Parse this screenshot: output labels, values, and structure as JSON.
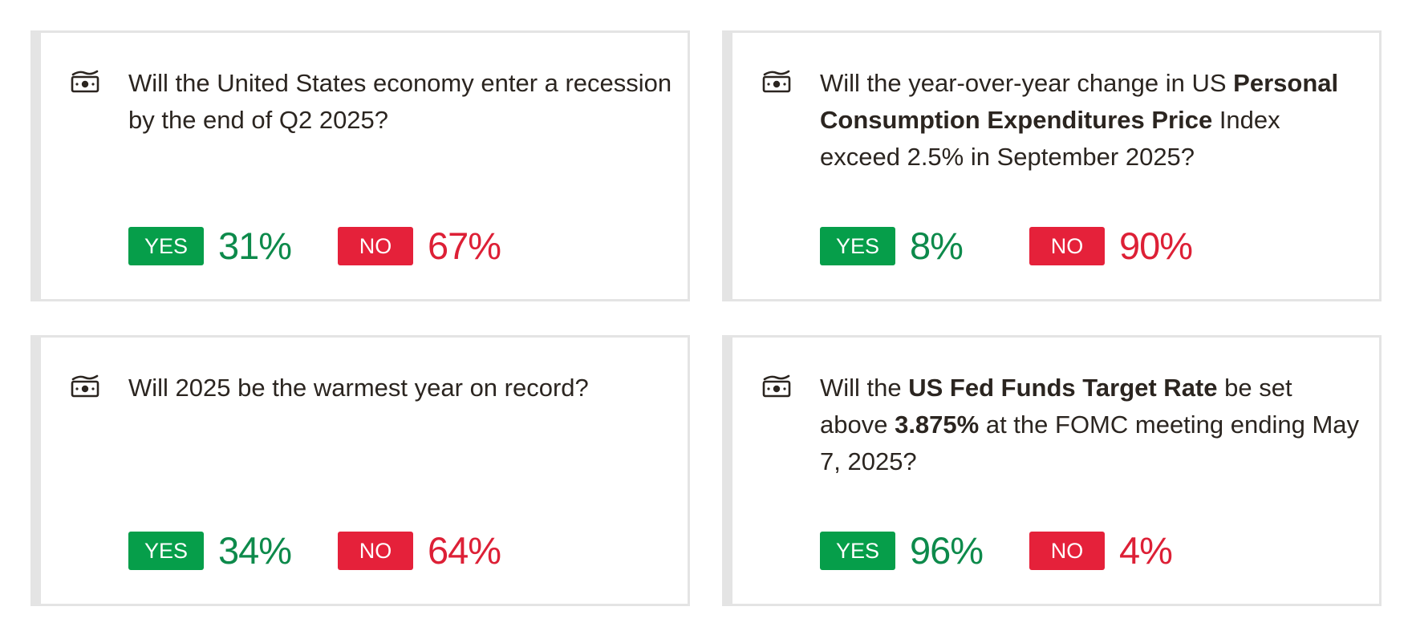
{
  "icon": "money-bill-icon",
  "colors": {
    "yes_badge": "#069e4a",
    "yes_text": "#0d8a4b",
    "no_badge": "#e5213a",
    "no_text": "#dd2036",
    "card_border": "#e4e4e4"
  },
  "cards": [
    {
      "question_segments": [
        {
          "text": "Will the United States economy enter a recession by the end of Q2 2025?",
          "bold": false
        }
      ],
      "yes_label": "YES",
      "yes_pct": "31%",
      "no_label": "NO",
      "no_pct": "67%"
    },
    {
      "question_segments": [
        {
          "text": "Will the year-over-year change in US ",
          "bold": false
        },
        {
          "text": "Personal Consumption Expenditures Price",
          "bold": true
        },
        {
          "text": " Index exceed 2.5% in September 2025?",
          "bold": false
        }
      ],
      "yes_label": "YES",
      "yes_pct": "8%",
      "no_label": "NO",
      "no_pct": "90%"
    },
    {
      "question_segments": [
        {
          "text": "Will 2025 be the warmest year on record?",
          "bold": false
        }
      ],
      "yes_label": "YES",
      "yes_pct": "34%",
      "no_label": "NO",
      "no_pct": "64%"
    },
    {
      "question_segments": [
        {
          "text": "Will the ",
          "bold": false
        },
        {
          "text": "US Fed Funds Target Rate",
          "bold": true
        },
        {
          "text": " be set above ",
          "bold": false
        },
        {
          "text": "3.875%",
          "bold": true
        },
        {
          "text": " at the FOMC meeting ending May 7, 2025?",
          "bold": false
        }
      ],
      "yes_label": "YES",
      "yes_pct": "96%",
      "no_label": "NO",
      "no_pct": "4%"
    }
  ]
}
